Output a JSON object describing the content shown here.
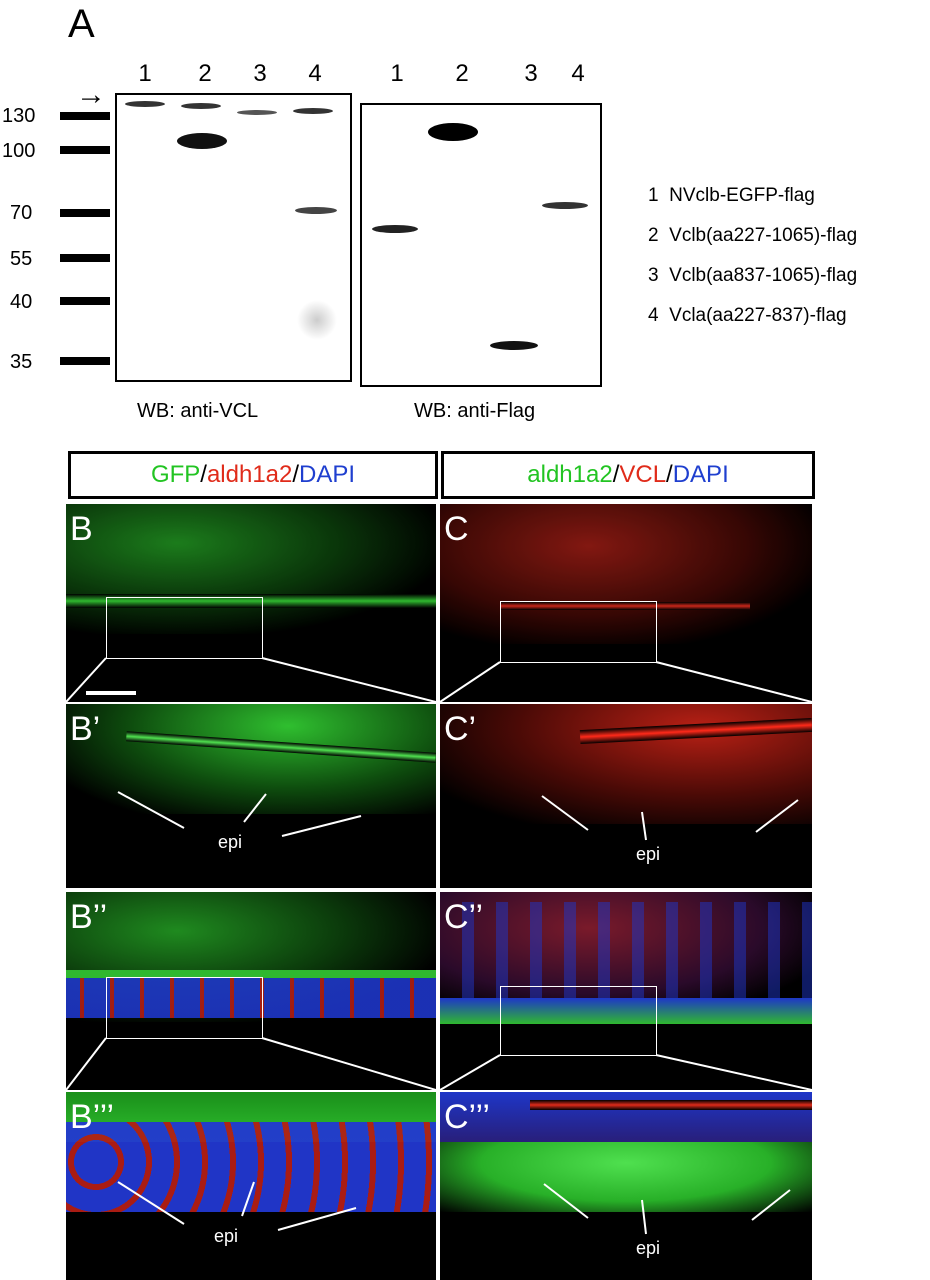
{
  "panel_a": {
    "letter": "A",
    "lanes_left": [
      "1",
      "2",
      "3",
      "4"
    ],
    "lanes_right": [
      "1",
      "2",
      "3",
      "4"
    ],
    "mw_markers": [
      "130",
      "100",
      "70",
      "55",
      "40",
      "35"
    ],
    "arrow": "→",
    "wb_left": "WB:  anti-VCL",
    "wb_right": "WB: anti-Flag",
    "legend": [
      {
        "num": "1",
        "text": "NVclb-EGFP-flag"
      },
      {
        "num": "2",
        "text": "Vclb(aa227-1065)-flag"
      },
      {
        "num": "3",
        "text": "Vclb(aa837-1065)-flag"
      },
      {
        "num": "4",
        "text": "Vcla(aa227-837)-flag"
      }
    ]
  },
  "headers": {
    "left": {
      "part1": "GFP",
      "sep1": "/",
      "part2": "aldh1a2",
      "sep2": "/",
      "part3": "DAPI"
    },
    "right": {
      "part1": "aldh1a2",
      "sep1": "/",
      "part2": "VCL",
      "sep2": "/",
      "part3": "DAPI"
    }
  },
  "panels": {
    "b": "B",
    "c": "C",
    "b1": "B’",
    "c1": "C’",
    "b2": "B’’",
    "c2": "C’’",
    "b3": "B’’’",
    "c3": "C’’’"
  },
  "epi_label": "epi",
  "colors": {
    "green": "#22c422",
    "red": "#e02b1a",
    "blue": "#1f3fcf"
  }
}
